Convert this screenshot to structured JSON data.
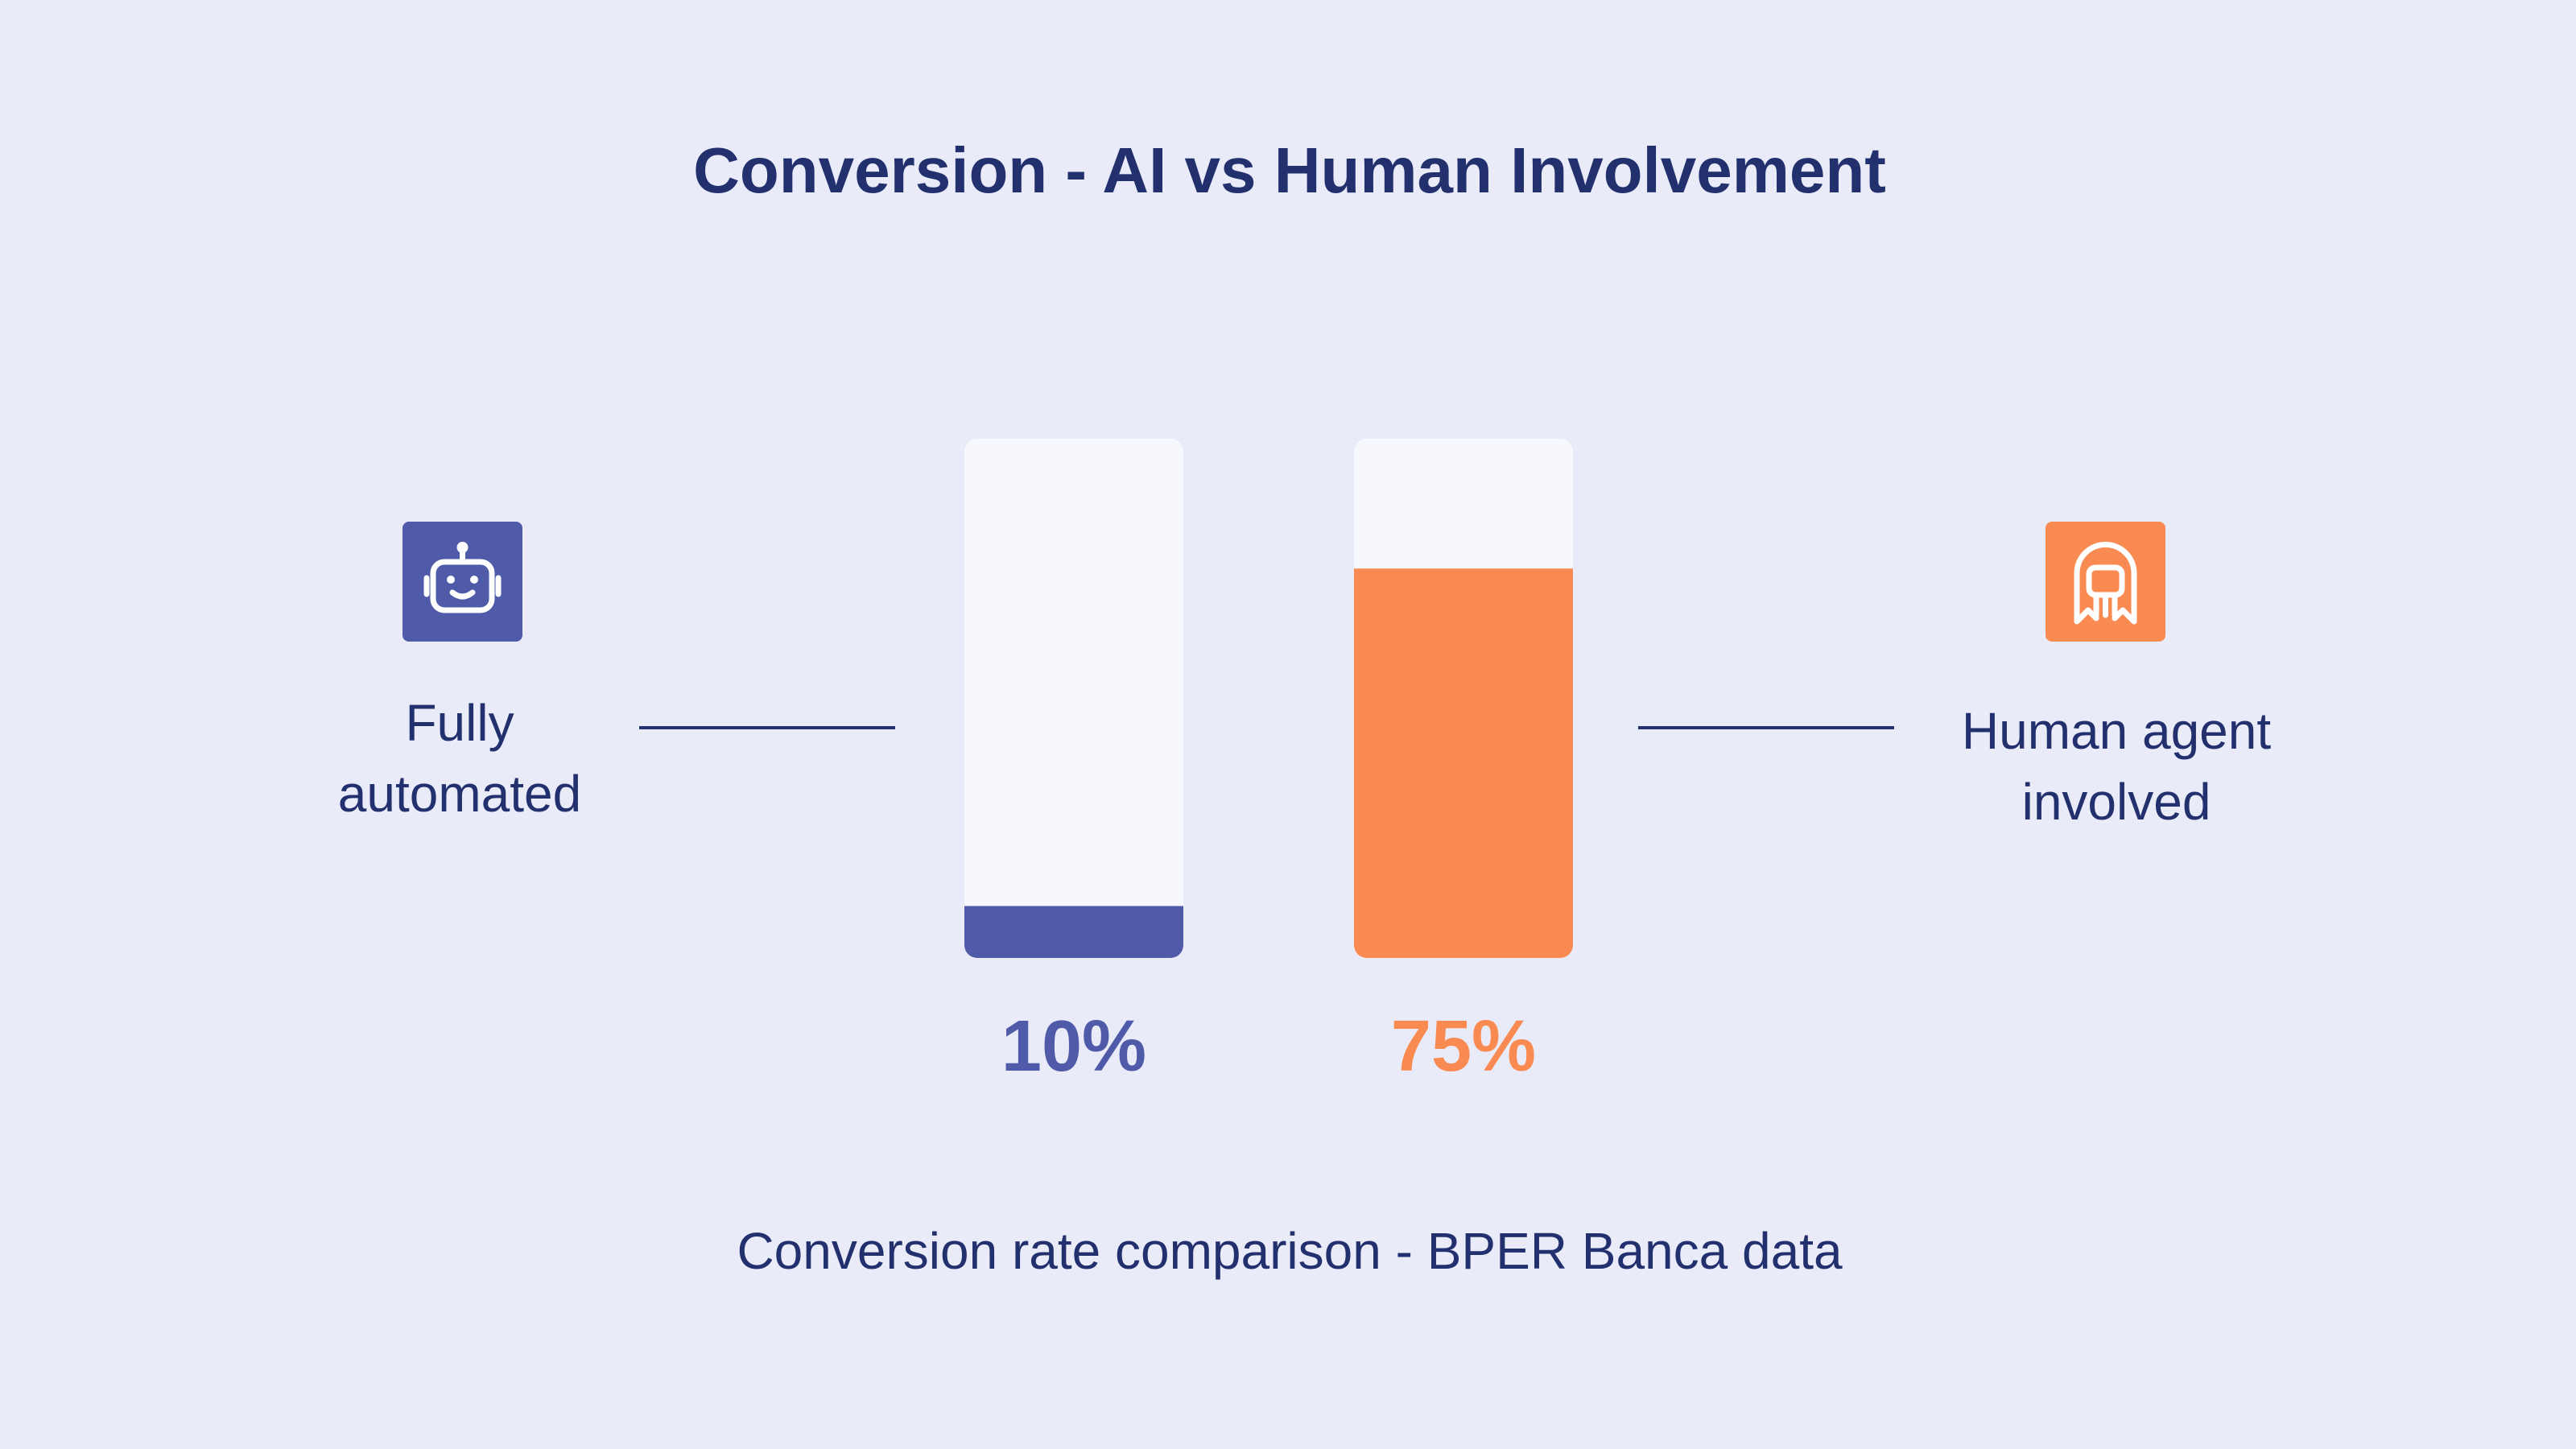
{
  "chart_data": {
    "type": "bar",
    "title": "Conversion - AI vs Human Involvement",
    "caption": "Conversion rate comparison - BPER Banca data",
    "categories": [
      "Fully automated",
      "Human agent involved"
    ],
    "values": [
      10,
      75
    ],
    "value_labels": [
      "10%",
      "75%"
    ],
    "colors": [
      "#4f5aa8",
      "#f98b52"
    ],
    "ylim": [
      0,
      100
    ]
  }
}
